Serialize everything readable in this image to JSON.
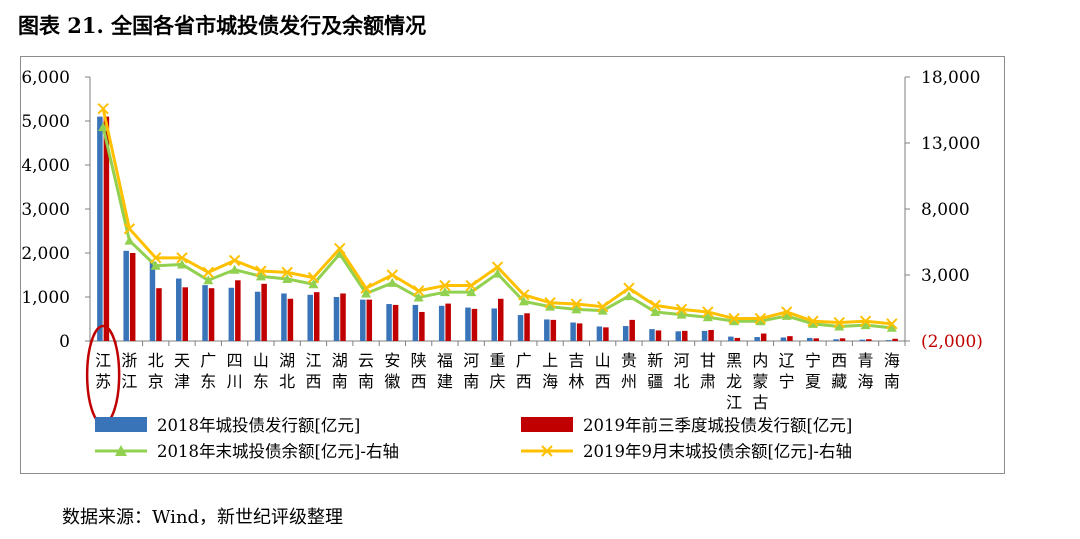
{
  "title": "图表 21. 全国各省市城投债发行及余额情况",
  "source": "数据来源：Wind，新世纪评级整理",
  "colors": {
    "bar2018": "#3a74b8",
    "bar2019": "#c00000",
    "line2018": "#92d050",
    "line2019": "#ffc000",
    "highlight": "#c00000",
    "negTick": "#c00000"
  },
  "chart_data": {
    "type": "bar",
    "categories": [
      "江苏",
      "浙江",
      "北京",
      "天津",
      "广东",
      "四川",
      "山东",
      "湖北",
      "江西",
      "湖南",
      "云南",
      "安徽",
      "陕西",
      "福建",
      "河南",
      "重庆",
      "广西",
      "上海",
      "吉林",
      "山西",
      "贵州",
      "新疆",
      "河北",
      "甘肃",
      "黑龙江",
      "内蒙古",
      "辽宁",
      "宁夏",
      "西藏",
      "青海",
      "海南"
    ],
    "category_labels": [
      [
        "江",
        "苏"
      ],
      [
        "浙",
        "江"
      ],
      [
        "北",
        "京"
      ],
      [
        "天",
        "津"
      ],
      [
        "广",
        "东"
      ],
      [
        "四",
        "川"
      ],
      [
        "山",
        "东"
      ],
      [
        "湖",
        "北"
      ],
      [
        "江",
        "西"
      ],
      [
        "湖",
        "南"
      ],
      [
        "云",
        "南"
      ],
      [
        "安",
        "徽"
      ],
      [
        "陕",
        "西"
      ],
      [
        "福",
        "建"
      ],
      [
        "河",
        "南"
      ],
      [
        "重",
        "庆"
      ],
      [
        "广",
        "西"
      ],
      [
        "上",
        "海"
      ],
      [
        "吉",
        "林"
      ],
      [
        "山",
        "西"
      ],
      [
        "贵",
        "州"
      ],
      [
        "新",
        "疆"
      ],
      [
        "河",
        "北"
      ],
      [
        "甘",
        "肃"
      ],
      [
        "黑",
        "龙",
        "江"
      ],
      [
        "内",
        "蒙",
        "古"
      ],
      [
        "辽",
        "宁"
      ],
      [
        "宁",
        "夏"
      ],
      [
        "西",
        "藏"
      ],
      [
        "青",
        "海"
      ],
      [
        "海",
        "南"
      ]
    ],
    "highlighted_category": "江苏",
    "left_axis": {
      "ylim": [
        0,
        6000
      ],
      "ticks": [
        "0",
        "1,000",
        "2,000",
        "3,000",
        "4,000",
        "5,000",
        "6,000"
      ],
      "tick_values": [
        0,
        1000,
        2000,
        3000,
        4000,
        5000,
        6000
      ]
    },
    "right_axis": {
      "ylim": [
        -2000,
        18000
      ],
      "ticks": [
        "(2,000)",
        "3,000",
        "8,000",
        "13,000",
        "18,000"
      ],
      "tick_values": [
        -2000,
        3000,
        8000,
        13000,
        18000
      ]
    },
    "series": [
      {
        "name": "2018年城投债发行额[亿元]",
        "type": "bar",
        "axis": "left",
        "values": [
          5100,
          2050,
          1800,
          1420,
          1270,
          1210,
          1120,
          1080,
          1050,
          1000,
          940,
          840,
          820,
          800,
          760,
          740,
          590,
          490,
          420,
          330,
          340,
          270,
          220,
          230,
          100,
          90,
          80,
          70,
          40,
          30,
          20
        ]
      },
      {
        "name": "2019年前三季度城投债发行额[亿元]",
        "type": "bar",
        "axis": "left",
        "values": [
          5100,
          2000,
          1200,
          1220,
          1200,
          1380,
          1300,
          960,
          1110,
          1080,
          940,
          820,
          660,
          850,
          730,
          960,
          630,
          480,
          400,
          310,
          480,
          240,
          230,
          250,
          70,
          170,
          110,
          60,
          60,
          40,
          50
        ]
      },
      {
        "name": "2018年末城投债余额[亿元]-右轴",
        "type": "line",
        "axis": "right",
        "marker": "triangle",
        "values": [
          14200,
          5600,
          3700,
          3800,
          2600,
          3400,
          2900,
          2700,
          2300,
          4600,
          1600,
          2400,
          1300,
          1700,
          1700,
          3100,
          1000,
          600,
          400,
          300,
          1400,
          200,
          0,
          -200,
          -500,
          -500,
          -100,
          -700,
          -900,
          -800,
          -1000
        ]
      },
      {
        "name": "2019年9月末城投债余额[亿元]-右轴",
        "type": "line",
        "axis": "right",
        "marker": "x",
        "values": [
          15600,
          6500,
          4300,
          4300,
          3200,
          4100,
          3300,
          3200,
          2800,
          5000,
          2000,
          3000,
          1800,
          2200,
          2200,
          3600,
          1500,
          900,
          800,
          600,
          2000,
          700,
          400,
          200,
          -300,
          -300,
          200,
          -500,
          -600,
          -500,
          -700
        ]
      }
    ],
    "grid": false,
    "legend_position": "bottom"
  }
}
